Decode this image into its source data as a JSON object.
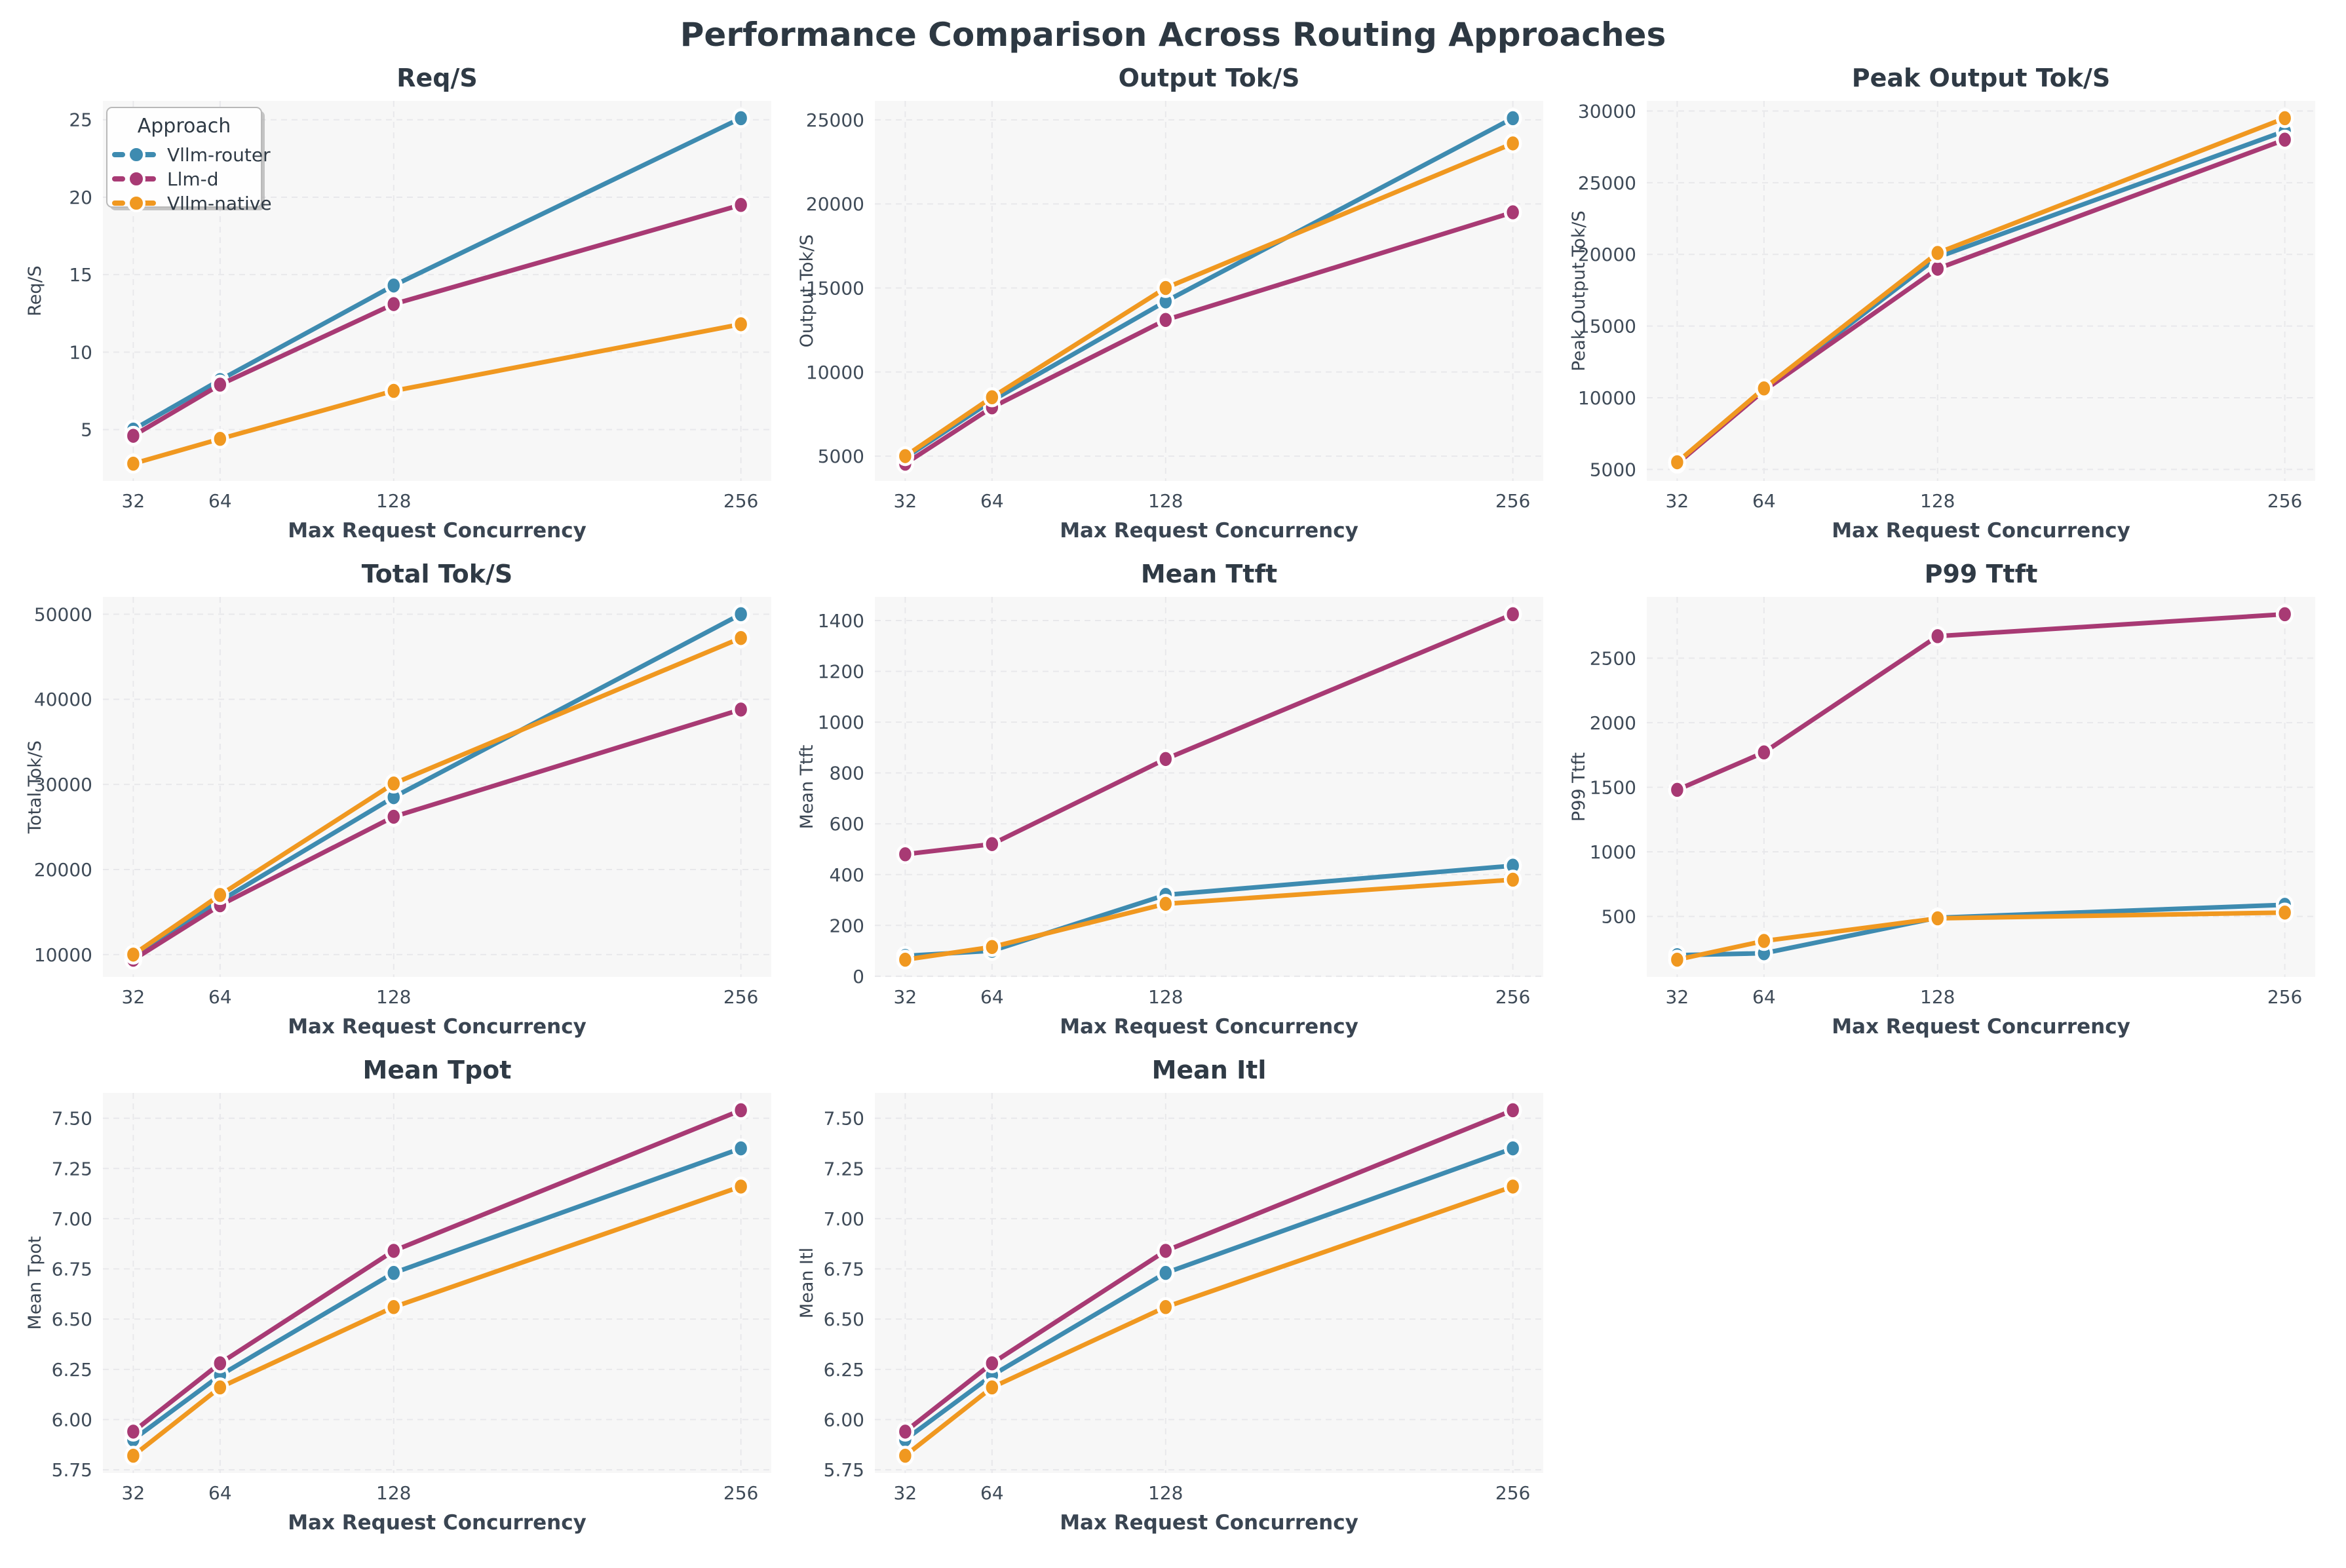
{
  "suptitle": "Performance Comparison Across Routing Approaches",
  "legend": {
    "title": "Approach"
  },
  "approaches": [
    {
      "name": "Vllm-router",
      "color": "#3E8BB0"
    },
    {
      "name": "Llm-d",
      "color": "#A83A74"
    },
    {
      "name": "Vllm-native",
      "color": "#F09820"
    }
  ],
  "style": {
    "plot_bg": "#f7f7f7",
    "grid_color": "#e8e8eb",
    "title_color": "#2f3a45",
    "tick_color": "#3f4b58",
    "label_color": "#3a4552",
    "legend_border": "#b9b9b9",
    "legend_bg": "#fefefe",
    "marker_edge": "#ffffff"
  },
  "chart_data": [
    {
      "type": "line",
      "title": "Req/S",
      "ylabel": "Req/S",
      "xlabel": "Max Request Concurrency",
      "x": [
        32,
        64,
        128,
        256
      ],
      "xticks": [
        32,
        64,
        128,
        256
      ],
      "yticks": [
        5,
        10,
        15,
        20,
        25
      ],
      "ytick_decimals": 0,
      "legend": true,
      "series_values": [
        [
          5.0,
          8.2,
          14.3,
          25.1
        ],
        [
          4.6,
          7.9,
          13.1,
          19.5
        ],
        [
          2.8,
          4.4,
          7.5,
          11.8
        ]
      ]
    },
    {
      "type": "line",
      "title": "Output Tok/S",
      "ylabel": "Output Tok/S",
      "xlabel": "Max Request Concurrency",
      "x": [
        32,
        64,
        128,
        256
      ],
      "xticks": [
        32,
        64,
        128,
        256
      ],
      "yticks": [
        5000,
        10000,
        15000,
        20000,
        25000
      ],
      "ytick_decimals": 0,
      "legend": false,
      "series_values": [
        [
          4900,
          8300,
          14200,
          25100
        ],
        [
          4550,
          7900,
          13100,
          19500
        ],
        [
          5000,
          8500,
          15000,
          23600
        ]
      ]
    },
    {
      "type": "line",
      "title": "Peak Output Tok/S",
      "ylabel": "Peak Output Tok/S",
      "xlabel": "Max Request Concurrency",
      "x": [
        32,
        64,
        128,
        256
      ],
      "xticks": [
        32,
        64,
        128,
        256
      ],
      "yticks": [
        5000,
        10000,
        15000,
        20000,
        25000,
        30000
      ],
      "ytick_decimals": 0,
      "legend": false,
      "series_values": [
        [
          5450,
          10550,
          19800,
          28600
        ],
        [
          5400,
          10500,
          19000,
          28000
        ],
        [
          5500,
          10650,
          20100,
          29500
        ]
      ]
    },
    {
      "type": "line",
      "title": "Total Tok/S",
      "ylabel": "Total Tok/S",
      "xlabel": "Max Request Concurrency",
      "x": [
        32,
        64,
        128,
        256
      ],
      "xticks": [
        32,
        64,
        128,
        256
      ],
      "yticks": [
        10000,
        20000,
        30000,
        40000,
        50000
      ],
      "ytick_decimals": 0,
      "legend": false,
      "series_values": [
        [
          9900,
          16300,
          28500,
          50000
        ],
        [
          9400,
          15800,
          26200,
          38800
        ],
        [
          10000,
          17000,
          30100,
          47200
        ]
      ]
    },
    {
      "type": "line",
      "title": "Mean Ttft",
      "ylabel": "Mean Ttft",
      "xlabel": "Max Request Concurrency",
      "x": [
        32,
        64,
        128,
        256
      ],
      "xticks": [
        32,
        64,
        128,
        256
      ],
      "yticks": [
        0,
        200,
        400,
        600,
        800,
        1000,
        1200,
        1400
      ],
      "ytick_decimals": 0,
      "legend": false,
      "series_values": [
        [
          80,
          100,
          320,
          435
        ],
        [
          480,
          520,
          855,
          1425
        ],
        [
          65,
          115,
          285,
          380
        ]
      ]
    },
    {
      "type": "line",
      "title": "P99 Ttft",
      "ylabel": "P99 Ttft",
      "xlabel": "Max Request Concurrency",
      "x": [
        32,
        64,
        128,
        256
      ],
      "xticks": [
        32,
        64,
        128,
        256
      ],
      "yticks": [
        500,
        1000,
        1500,
        2000,
        2500
      ],
      "ytick_decimals": 0,
      "legend": false,
      "series_values": [
        [
          200,
          215,
          490,
          590
        ],
        [
          1480,
          1770,
          2670,
          2840
        ],
        [
          165,
          310,
          485,
          530
        ]
      ]
    },
    {
      "type": "line",
      "title": "Mean Tpot",
      "ylabel": "Mean Tpot",
      "xlabel": "Max Request Concurrency",
      "x": [
        32,
        64,
        128,
        256
      ],
      "xticks": [
        32,
        64,
        128,
        256
      ],
      "yticks": [
        5.75,
        6.0,
        6.25,
        6.5,
        6.75,
        7.0,
        7.25,
        7.5
      ],
      "ytick_decimals": 2,
      "legend": false,
      "series_values": [
        [
          5.9,
          6.22,
          6.73,
          7.35
        ],
        [
          5.94,
          6.28,
          6.84,
          7.54
        ],
        [
          5.82,
          6.16,
          6.56,
          7.16
        ]
      ]
    },
    {
      "type": "line",
      "title": "Mean Itl",
      "ylabel": "Mean Itl",
      "xlabel": "Max Request Concurrency",
      "x": [
        32,
        64,
        128,
        256
      ],
      "xticks": [
        32,
        64,
        128,
        256
      ],
      "yticks": [
        5.75,
        6.0,
        6.25,
        6.5,
        6.75,
        7.0,
        7.25,
        7.5
      ],
      "ytick_decimals": 2,
      "legend": false,
      "series_values": [
        [
          5.9,
          6.22,
          6.73,
          7.35
        ],
        [
          5.94,
          6.28,
          6.84,
          7.54
        ],
        [
          5.82,
          6.16,
          6.56,
          7.16
        ]
      ]
    }
  ]
}
